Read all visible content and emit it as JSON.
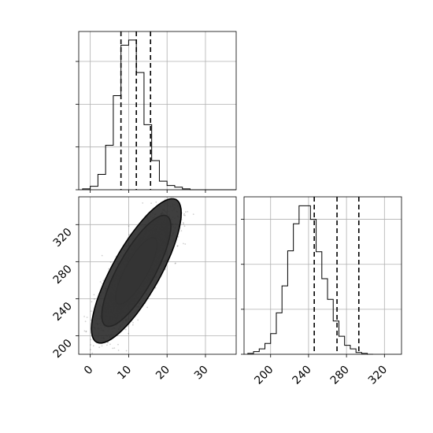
{
  "chart_data": [
    {
      "panel": "histogram-x",
      "type": "bar",
      "xlim": [
        -3,
        38
      ],
      "bin_width": 2,
      "bin_edges_start": -2,
      "counts": [
        1,
        4,
        18,
        52,
        110,
        169,
        175,
        137,
        76,
        34,
        10,
        5,
        3,
        1,
        0,
        0,
        0,
        0,
        0,
        0
      ],
      "ylim": [
        0,
        185
      ],
      "yticks": [
        0,
        50,
        100,
        150
      ],
      "xticks": [
        0,
        10,
        20,
        30
      ],
      "quantiles": [
        8,
        12,
        15.7
      ],
      "grid": true
    },
    {
      "panel": "histogram-y",
      "type": "bar",
      "xlim": [
        172,
        338
      ],
      "bin_width": 6,
      "bin_edges_start": 176,
      "counts": [
        1,
        3,
        6,
        12,
        23,
        46,
        76,
        115,
        145,
        165,
        165,
        150,
        114,
        84,
        61,
        37,
        20,
        10,
        6,
        2,
        1,
        0
      ],
      "ylim": [
        0,
        175
      ],
      "yticks": [
        0,
        50,
        100,
        150
      ],
      "xticks": [
        200,
        240,
        280,
        320
      ],
      "xtick_labels": [
        "200",
        "240",
        "280",
        "320"
      ],
      "quantiles": [
        246,
        270,
        293
      ],
      "grid": true
    },
    {
      "panel": "density-2d",
      "type": "scatter",
      "xlim": [
        -3,
        38
      ],
      "ylim": [
        180,
        350
      ],
      "xticks": [
        0,
        10,
        20,
        30
      ],
      "xtick_labels": [
        "0",
        "10",
        "20",
        "30"
      ],
      "yticks": [
        200,
        240,
        280,
        320
      ],
      "ytick_labels": [
        "200",
        "240",
        "280",
        "320"
      ],
      "mean": [
        12,
        270
      ],
      "sd": [
        4.5,
        30
      ],
      "correlation": 0.8,
      "contour_levels": [
        0.5,
        1.2,
        2.0,
        2.6
      ],
      "grid": true
    }
  ],
  "colors": {
    "axis": "#000000",
    "grid": "#b0b0b0",
    "hist": "#000000"
  }
}
